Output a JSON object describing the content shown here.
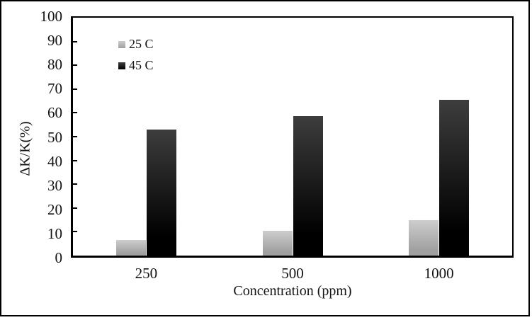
{
  "figure": {
    "background_color": "#ffffff",
    "border_color": "#000000",
    "text_color": "#141414"
  },
  "chart_data": {
    "type": "bar",
    "title": "",
    "categories": [
      "250",
      "500",
      "1000"
    ],
    "series": [
      {
        "name": "25 C",
        "values": [
          6.5,
          10.5,
          15
        ],
        "color_top": "#cdcdcd",
        "color_bottom": "#a0a0a0"
      },
      {
        "name": "45 C",
        "values": [
          53,
          58.5,
          65.5
        ],
        "color_top": "#3d3d3d",
        "color_bottom": "#000000"
      }
    ],
    "xlabel": "Concentration (ppm)",
    "ylabel": "ΔK/K(%)",
    "ylim": [
      0,
      100
    ],
    "ytick_step": 10,
    "yticks": [
      0,
      10,
      20,
      30,
      40,
      50,
      60,
      70,
      80,
      90,
      100
    ],
    "grid": false,
    "legend_position": "upper-left-inside",
    "tick_direction": "in"
  }
}
